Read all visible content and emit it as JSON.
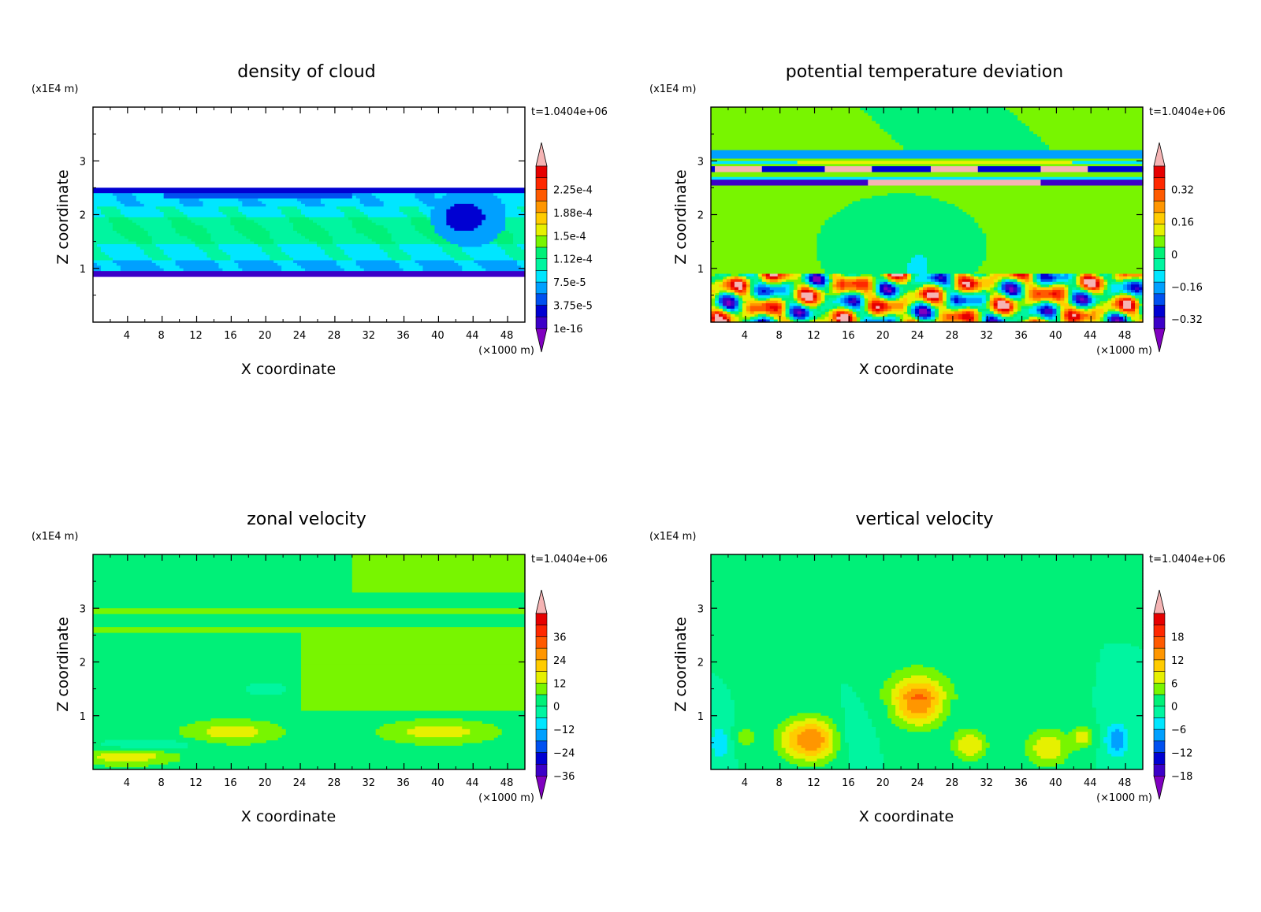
{
  "chart_data": [
    {
      "type": "heatmap",
      "title": "density of cloud",
      "xlabel": "X coordinate",
      "ylabel": "Z coordinate",
      "x_unit": "(×1000 m)",
      "y_unit": "(x1E4 m)",
      "time_label": "t=1.0404e+06",
      "x_ticks": [
        "4",
        "8",
        "12",
        "16",
        "20",
        "24",
        "28",
        "32",
        "36",
        "40",
        "44",
        "48"
      ],
      "y_ticks": [
        "1",
        "2",
        "3"
      ],
      "xlim": [
        0,
        50
      ],
      "ylim": [
        0,
        4
      ],
      "colorbar_labels": [
        "2.25e-4",
        "1.88e-4",
        "1.5e-4",
        "1.12e-4",
        "7.5e-5",
        "3.75e-5",
        "1e-16"
      ],
      "field": "cloud"
    },
    {
      "type": "heatmap",
      "title": "potential temperature deviation",
      "xlabel": "X coordinate",
      "ylabel": "Z coordinate",
      "x_unit": "(×1000 m)",
      "y_unit": "(x1E4 m)",
      "time_label": "t=1.0404e+06",
      "x_ticks": [
        "4",
        "8",
        "12",
        "16",
        "20",
        "24",
        "28",
        "32",
        "36",
        "40",
        "44",
        "48"
      ],
      "y_ticks": [
        "1",
        "2",
        "3"
      ],
      "xlim": [
        0,
        50
      ],
      "ylim": [
        0,
        4
      ],
      "colorbar_labels": [
        "0.32",
        "0.16",
        "0",
        "−0.16",
        "−0.32"
      ],
      "field": "theta"
    },
    {
      "type": "heatmap",
      "title": "zonal velocity",
      "xlabel": "X coordinate",
      "ylabel": "Z coordinate",
      "x_unit": "(×1000 m)",
      "y_unit": "(x1E4 m)",
      "time_label": "t=1.0404e+06",
      "x_ticks": [
        "4",
        "8",
        "12",
        "16",
        "20",
        "24",
        "28",
        "32",
        "36",
        "40",
        "44",
        "48"
      ],
      "y_ticks": [
        "1",
        "2",
        "3"
      ],
      "xlim": [
        0,
        50
      ],
      "ylim": [
        0,
        4
      ],
      "colorbar_labels": [
        "36",
        "24",
        "12",
        "0",
        "−12",
        "−24",
        "−36"
      ],
      "field": "u"
    },
    {
      "type": "heatmap",
      "title": "vertical velocity",
      "xlabel": "X coordinate",
      "ylabel": "Z coordinate",
      "x_unit": "(×1000 m)",
      "y_unit": "(x1E4 m)",
      "time_label": "t=1.0404e+06",
      "x_ticks": [
        "4",
        "8",
        "12",
        "16",
        "20",
        "24",
        "28",
        "32",
        "36",
        "40",
        "44",
        "48"
      ],
      "y_ticks": [
        "1",
        "2",
        "3"
      ],
      "xlim": [
        0,
        50
      ],
      "ylim": [
        0,
        4
      ],
      "colorbar_labels": [
        "18",
        "12",
        "6",
        "0",
        "−6",
        "−12",
        "−18"
      ],
      "field": "w"
    }
  ],
  "colors": {
    "palette": [
      "#8000c0",
      "#3c00c8",
      "#0000d2",
      "#0050f0",
      "#00a0ff",
      "#00e6ff",
      "#00f5a0",
      "#00f078",
      "#78f500",
      "#e6f000",
      "#ffcc00",
      "#ff9600",
      "#ff5a00",
      "#ff2800",
      "#e60000",
      "#f5b4b4"
    ]
  }
}
